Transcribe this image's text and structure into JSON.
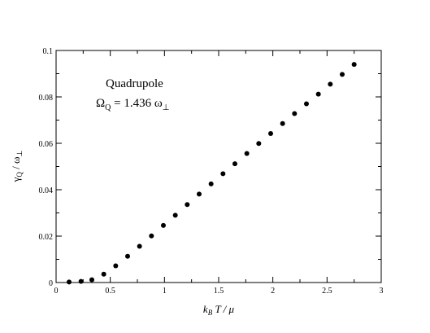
{
  "chart_data": {
    "type": "scatter",
    "title": "",
    "xlabel": {
      "k": "k",
      "sub": "B",
      "rest": " T / μ"
    },
    "ylabel": {
      "gamma": "γ",
      "sub": "Q",
      "rest": " / ω",
      "perp": "⊥"
    },
    "xlim": [
      0,
      3
    ],
    "ylim": [
      0,
      0.1
    ],
    "xticks": [
      0,
      0.5,
      1,
      1.5,
      2,
      2.5,
      3
    ],
    "xtick_labels": [
      "0",
      "0.5",
      "1",
      "1.5",
      "2",
      "2.5",
      "3"
    ],
    "yticks": [
      0,
      0.02,
      0.04,
      0.06,
      0.08,
      0.1
    ],
    "ytick_labels": [
      "0",
      "0.02",
      "0.04",
      "0.06",
      "0.08",
      "0.1"
    ],
    "grid": false,
    "marker_color": "#000000",
    "annotation": {
      "line1": "Quadrupole",
      "omega": "Ω",
      "omega_sub": "Q",
      "value": " = 1.436 ω",
      "perp": "⊥"
    },
    "series": [
      {
        "x": [
          0.12,
          0.23,
          0.33,
          0.44,
          0.55,
          0.66,
          0.77,
          0.88,
          0.99,
          1.1,
          1.21,
          1.32,
          1.43,
          1.54,
          1.65,
          1.76,
          1.87,
          1.98,
          2.09,
          2.2,
          2.31,
          2.42,
          2.53,
          2.64,
          2.75
        ],
        "y": [
          0.0002,
          0.0005,
          0.0012,
          0.0036,
          0.0072,
          0.0113,
          0.0156,
          0.0201,
          0.0246,
          0.029,
          0.0336,
          0.0381,
          0.0425,
          0.0469,
          0.0512,
          0.0556,
          0.0599,
          0.0642,
          0.0685,
          0.0728,
          0.077,
          0.0812,
          0.0855,
          0.0897,
          0.094
        ]
      }
    ]
  }
}
